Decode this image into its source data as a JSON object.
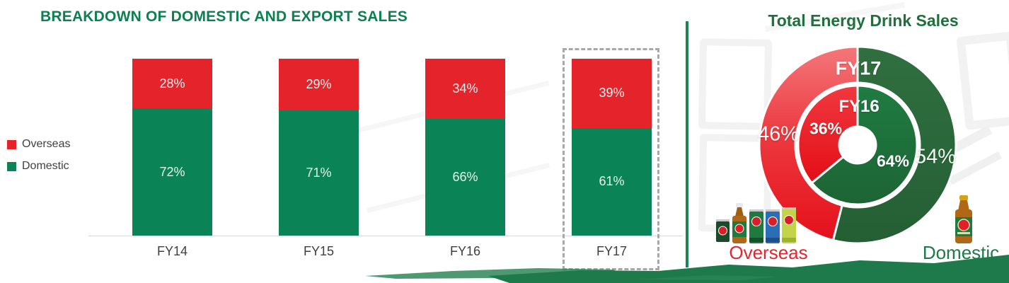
{
  "slide": {
    "left_title": "BREAKDOWN OF DOMESTIC AND EXPORT SALES",
    "right_title": "Total Energy Drink Sales"
  },
  "colors": {
    "overseas_red": "#E5232B",
    "domestic_green": "#0A8457",
    "left_title_green": "#0D8050",
    "right_title_green": "#20703E",
    "separator_green": "#1B8556",
    "donut_outer_red": "#E5121B",
    "donut_outer_green": "#2C6B3C",
    "donut_inner_red": "#E8141C",
    "donut_inner_green": "#1E7A41",
    "brush_green": "#1F7A4B",
    "highlight_dash_gray": "#A8A8A8"
  },
  "chart_data": [
    {
      "type": "bar",
      "subtype": "stacked-100-percent",
      "title": "BREAKDOWN OF DOMESTIC AND EXPORT SALES",
      "categories": [
        "FY14",
        "FY15",
        "FY16",
        "FY17"
      ],
      "series": [
        {
          "name": "Overseas",
          "color": "#E5232B",
          "values": [
            28,
            29,
            34,
            39
          ]
        },
        {
          "name": "Domestic",
          "color": "#0A8457",
          "values": [
            72,
            71,
            66,
            61
          ]
        }
      ],
      "value_labels": {
        "overseas": [
          "28%",
          "29%",
          "34%",
          "39%"
        ],
        "domestic": [
          "72%",
          "71%",
          "66%",
          "61%"
        ]
      },
      "highlight_category": "FY17",
      "legend_position": "left",
      "ylim": [
        0,
        100
      ],
      "grid": false
    },
    {
      "type": "pie",
      "subtype": "nested-donut",
      "title": "Total Energy Drink Sales",
      "rings": [
        {
          "name": "FY17",
          "position": "outer",
          "slices": [
            {
              "label": "Overseas",
              "value": 46,
              "display": "46%",
              "color": "#E5121B"
            },
            {
              "label": "Domestic",
              "value": 54,
              "display": "54%",
              "color": "#2C6B3C"
            }
          ]
        },
        {
          "name": "FY16",
          "position": "inner",
          "slices": [
            {
              "label": "Overseas",
              "value": 36,
              "display": "36%",
              "color": "#E8141C"
            },
            {
              "label": "Domestic",
              "value": 64,
              "display": "64%",
              "color": "#1E7A41"
            }
          ]
        }
      ],
      "captions": [
        {
          "label": "Overseas",
          "color": "#E8232B"
        },
        {
          "label": "Domestic",
          "color": "#1E7B44"
        }
      ]
    }
  ]
}
